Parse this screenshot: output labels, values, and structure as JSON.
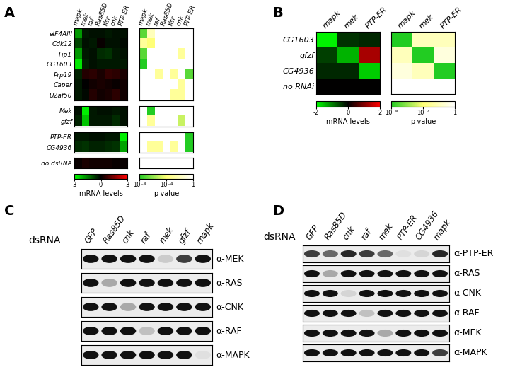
{
  "chart_data": [
    {
      "type": "heatmap",
      "panel": "A",
      "columns": [
        "mapk",
        "mek",
        "raf",
        "Ras85D",
        "Ksr",
        "cnk",
        "PTP-ER"
      ],
      "groups": [
        {
          "rows": [
            "eIF4AIII",
            "Cdk12",
            "Fip1",
            "CG1603",
            "Prp19",
            "Caper",
            "U2af50"
          ],
          "mrna": [
            [
              -1.8,
              -0.3,
              -0.2,
              -0.2,
              -0.3,
              -0.2,
              -0.2
            ],
            [
              -0.8,
              -0.2,
              -0.3,
              0.1,
              -0.2,
              -0.2,
              -0.1
            ],
            [
              -1.8,
              -0.3,
              -0.2,
              -0.5,
              -0.6,
              -0.3,
              -0.2
            ],
            [
              -2.7,
              -0.4,
              -0.2,
              -0.3,
              -0.3,
              -0.3,
              -0.3
            ],
            [
              -0.4,
              0.4,
              0.5,
              0.3,
              0.6,
              0.5,
              0.3
            ],
            [
              -0.3,
              0.0,
              0.2,
              0.3,
              0.2,
              0.1,
              0.2
            ],
            [
              -0.3,
              -0.1,
              0.4,
              0.2,
              0.3,
              0.5,
              0.2
            ]
          ],
          "pvalue": [
            [
              1e-07,
              0.01,
              1,
              1,
              1,
              1,
              1
            ],
            [
              0.001,
              0.0001,
              1,
              1,
              1,
              1,
              1
            ],
            [
              1e-07,
              1,
              1,
              1,
              1,
              0.001,
              1
            ],
            [
              1e-08,
              1,
              1,
              1,
              1,
              1,
              1
            ],
            [
              1,
              1,
              0.001,
              1,
              0.001,
              1,
              1e-07
            ],
            [
              1,
              1,
              1,
              1,
              1,
              0.001,
              1
            ],
            [
              1,
              1,
              1,
              1,
              0.001,
              0.001,
              1
            ]
          ]
        },
        {
          "rows": [
            "Mek",
            "gfzf"
          ],
          "mrna": [
            [
              -0.2,
              -2.8,
              -0.3,
              -0.2,
              -0.2,
              -0.3,
              -0.2
            ],
            [
              -0.4,
              -2.3,
              -0.3,
              -0.3,
              -0.3,
              -0.5,
              -0.2
            ]
          ],
          "pvalue": [
            [
              1,
              1e-08,
              1,
              1,
              1,
              1,
              1
            ],
            [
              1,
              0.001,
              1,
              1,
              1,
              1e-05,
              1
            ]
          ]
        },
        {
          "rows": [
            "PTP-ER",
            "CG4936"
          ],
          "mrna": [
            [
              -0.3,
              -0.3,
              -0.2,
              -0.2,
              -0.3,
              -0.3,
              -2.8
            ],
            [
              -0.5,
              -0.6,
              -0.4,
              -0.4,
              -0.5,
              -0.6,
              -1.9
            ]
          ],
          "pvalue": [
            [
              1,
              1,
              1,
              1,
              1,
              1,
              1e-08
            ],
            [
              1,
              0.001,
              0.001,
              1,
              0.001,
              1,
              1e-08
            ]
          ]
        },
        {
          "rows": [
            "no dsRNA"
          ],
          "mrna": [
            [
              0.1,
              0.3,
              0.2,
              0.2,
              0.2,
              0.1,
              0.1
            ]
          ],
          "pvalue": [
            [
              1,
              1,
              1,
              1,
              1,
              1,
              1
            ]
          ]
        }
      ],
      "mrna_colorbar": {
        "label": "mRNA levels",
        "range": [
          -3,
          3
        ],
        "ticks": [
          -3,
          0,
          3
        ]
      },
      "pvalue_colorbar": {
        "label": "p-value",
        "range": [
          1e-08,
          1
        ],
        "ticks": [
          {
            "value": 1e-08,
            "label": "10⁻⁸"
          },
          {
            "value": 0.0001,
            "label": "10⁻⁴"
          },
          1
        ]
      }
    },
    {
      "type": "heatmap",
      "panel": "B",
      "columns": [
        "mapk",
        "mek",
        "PTP-ER"
      ],
      "groups": [
        {
          "rows": [
            "CG1603",
            "gfzf",
            "CG4936",
            "no RNAi"
          ],
          "mrna": [
            [
              -1.9,
              -0.4,
              -0.3
            ],
            [
              -0.5,
              -1.4,
              1.3
            ],
            [
              -0.3,
              -0.3,
              -1.6
            ],
            [
              0,
              0,
              0
            ]
          ],
          "pvalue": [
            [
              1e-08,
              0.01,
              0.01
            ],
            [
              0.01,
              1e-08,
              0.1
            ],
            [
              0.1,
              0.01,
              1e-08
            ],
            [
              1,
              1,
              1
            ]
          ]
        }
      ],
      "mrna_colorbar": {
        "label": "mRNA levels",
        "range": [
          -2,
          2
        ],
        "ticks": [
          -2,
          0,
          2
        ]
      },
      "pvalue_colorbar": {
        "label": "p-value",
        "range": [
          1e-08,
          1
        ],
        "ticks": [
          {
            "value": 1e-08,
            "label": "10⁻⁸"
          },
          {
            "value": 0.0001,
            "label": "10⁻⁴"
          },
          1
        ]
      }
    }
  ],
  "blots": [
    {
      "panel": "C",
      "row_header": "dsRNA",
      "lanes": [
        "GFP",
        "Ras85D",
        "cnk",
        "raf",
        "mek",
        "gfzf",
        "mapk"
      ],
      "antibodies": [
        "α-MEK",
        "α-RAS",
        "α-CNK",
        "α-RAF",
        "α-MAPK"
      ],
      "band_intensity": [
        [
          1,
          1,
          1,
          1,
          0.15,
          0.8,
          1
        ],
        [
          1,
          0.3,
          1,
          1,
          1,
          1,
          1
        ],
        [
          1,
          1,
          0.3,
          1,
          1,
          1,
          1
        ],
        [
          1,
          1,
          1,
          0.2,
          1,
          1,
          1
        ],
        [
          1,
          1,
          1,
          1,
          1,
          1,
          0.05
        ]
      ]
    },
    {
      "panel": "D",
      "row_header": "dsRNA",
      "lanes": [
        "GFP",
        "Ras85D",
        "cnk",
        "raf",
        "mek",
        "PTP-ER",
        "CG4936",
        "mapk"
      ],
      "antibodies": [
        "α-PTP-ER",
        "α-RAS",
        "α-CNK",
        "α-RAF",
        "α-MEK",
        "α-MAPK"
      ],
      "band_intensity": [
        [
          0.8,
          0.6,
          0.9,
          0.8,
          0.6,
          0.05,
          0.1,
          0.9
        ],
        [
          1,
          0.3,
          1,
          1,
          1,
          1,
          1,
          1
        ],
        [
          1,
          1,
          0.1,
          1,
          1,
          1,
          1,
          1
        ],
        [
          1,
          1,
          1,
          0.2,
          1,
          1,
          1,
          1
        ],
        [
          1,
          1,
          1,
          1,
          0.3,
          1,
          1,
          1
        ],
        [
          1,
          1,
          1,
          1,
          1,
          1,
          1,
          0.8
        ]
      ]
    }
  ]
}
